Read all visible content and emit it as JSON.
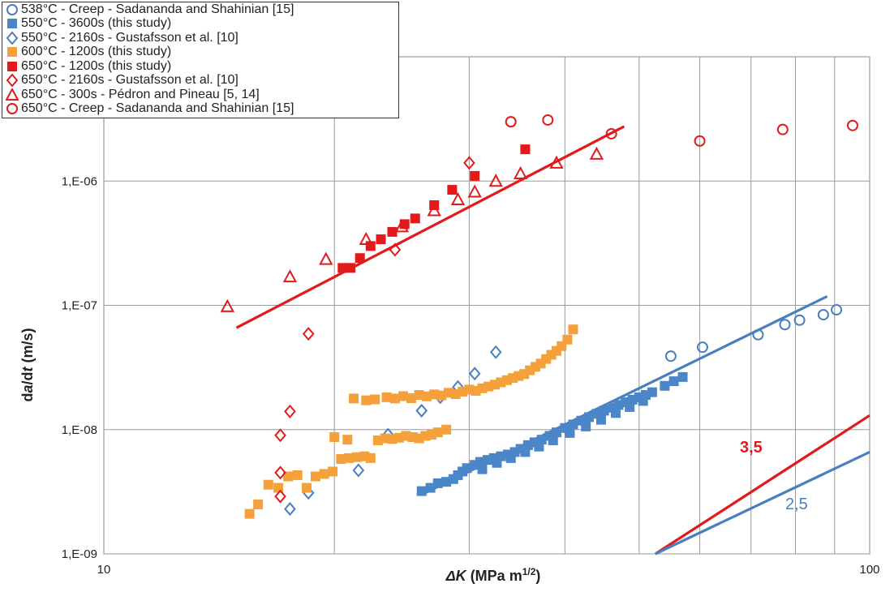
{
  "chart_data": {
    "type": "scatter",
    "xlabel_prefix": "ΔK",
    "xlabel_suffix": " (MPa m",
    "xlabel_sup": "1/2",
    "xlabel_close": ")",
    "ylabel_parts": [
      "d",
      "a",
      "/d",
      "t",
      " (m/s)"
    ],
    "x_scale": "log",
    "y_scale": "log",
    "xlim": [
      10,
      100
    ],
    "ylim": [
      1e-09,
      1e-05
    ],
    "x_ticks": [
      {
        "value": 10,
        "label": "10"
      },
      {
        "value": 100,
        "label": "100"
      }
    ],
    "y_ticks": [
      {
        "value": 1e-09,
        "label": "1,E-09"
      },
      {
        "value": 1e-08,
        "label": "1,E-08"
      },
      {
        "value": 1e-07,
        "label": "1,E-07"
      },
      {
        "value": 1e-06,
        "label": "1,E-06"
      }
    ],
    "grid": true,
    "legend_position": "top-left",
    "series": [
      {
        "name": "538°C - Creep - Sadananda and Shahinian [15]",
        "marker": "circle-open",
        "color": "#4a7fbf",
        "points": [
          [
            55.0,
            3.9e-08
          ],
          [
            60.5,
            4.6e-08
          ],
          [
            71.5,
            5.8e-08
          ],
          [
            77.5,
            7e-08
          ],
          [
            81.0,
            7.6e-08
          ],
          [
            87.0,
            8.4e-08
          ],
          [
            90.5,
            9.2e-08
          ]
        ]
      },
      {
        "name": "550°C - 3600s (this study)",
        "marker": "square-filled",
        "color": "#4a86c8",
        "points": [
          [
            26.0,
            3.2e-09
          ],
          [
            26.7,
            3.4e-09
          ],
          [
            27.3,
            3.7e-09
          ],
          [
            28.0,
            3.8e-09
          ],
          [
            28.6,
            4e-09
          ],
          [
            29.0,
            4.3e-09
          ],
          [
            29.4,
            4.6e-09
          ],
          [
            29.8,
            4.9e-09
          ],
          [
            30.5,
            5.2e-09
          ],
          [
            31.0,
            5.5e-09
          ],
          [
            31.7,
            5.7e-09
          ],
          [
            32.3,
            5.9e-09
          ],
          [
            33.0,
            6.1e-09
          ],
          [
            33.7,
            6.3e-09
          ],
          [
            34.4,
            6.6e-09
          ],
          [
            35.0,
            7e-09
          ],
          [
            35.8,
            7.5e-09
          ],
          [
            36.5,
            7.9e-09
          ],
          [
            37.3,
            8.3e-09
          ],
          [
            38.2,
            8.9e-09
          ],
          [
            39.0,
            9.5e-09
          ],
          [
            40.0,
            1.03e-08
          ],
          [
            41.0,
            1.1e-08
          ],
          [
            42.0,
            1.18e-08
          ],
          [
            43.0,
            1.26e-08
          ],
          [
            44.0,
            1.34e-08
          ],
          [
            45.0,
            1.42e-08
          ],
          [
            46.0,
            1.5e-08
          ],
          [
            47.0,
            1.58e-08
          ],
          [
            48.0,
            1.66e-08
          ],
          [
            49.0,
            1.74e-08
          ],
          [
            50.0,
            1.82e-08
          ],
          [
            51.0,
            1.9e-08
          ],
          [
            52.0,
            2e-08
          ],
          [
            54.0,
            2.25e-08
          ],
          [
            55.5,
            2.45e-08
          ],
          [
            57.0,
            2.65e-08
          ],
          [
            31.2,
            4.8e-09
          ],
          [
            32.6,
            5.4e-09
          ],
          [
            34.0,
            5.9e-09
          ],
          [
            35.5,
            6.6e-09
          ],
          [
            37.0,
            7.3e-09
          ],
          [
            38.6,
            8.2e-09
          ],
          [
            40.6,
            9.4e-09
          ],
          [
            42.6,
            1.06e-08
          ],
          [
            44.6,
            1.2e-08
          ],
          [
            46.6,
            1.36e-08
          ],
          [
            48.6,
            1.52e-08
          ],
          [
            50.6,
            1.7e-08
          ]
        ]
      },
      {
        "name": "550°C - 2160s - Gustafsson et al. [10]",
        "marker": "diamond-open",
        "color": "#4a7fbf",
        "points": [
          [
            17.5,
            2.3e-09
          ],
          [
            18.5,
            3.1e-09
          ],
          [
            21.5,
            4.7e-09
          ],
          [
            23.5,
            9.1e-09
          ],
          [
            26.0,
            1.42e-08
          ],
          [
            27.5,
            1.82e-08
          ],
          [
            29.0,
            2.2e-08
          ],
          [
            30.5,
            2.82e-08
          ],
          [
            32.5,
            4.2e-08
          ]
        ]
      },
      {
        "name": "600°C - 1200s (this study)",
        "marker": "square-filled",
        "color": "#f5a13b",
        "points": [
          [
            15.5,
            2.1e-09
          ],
          [
            15.9,
            2.5e-09
          ],
          [
            16.4,
            3.6e-09
          ],
          [
            16.9,
            3.4e-09
          ],
          [
            17.4,
            4.2e-09
          ],
          [
            17.9,
            4.3e-09
          ],
          [
            18.4,
            3.4e-09
          ],
          [
            18.9,
            4.2e-09
          ],
          [
            19.4,
            4.4e-09
          ],
          [
            19.9,
            4.6e-09
          ],
          [
            20.4,
            5.8e-09
          ],
          [
            20.9,
            5.9e-09
          ],
          [
            21.4,
            6e-09
          ],
          [
            21.9,
            6.1e-09
          ],
          [
            22.3,
            5.9e-09
          ],
          [
            22.8,
            8.2e-09
          ],
          [
            23.3,
            8.5e-09
          ],
          [
            23.8,
            8.4e-09
          ],
          [
            24.3,
            8.6e-09
          ],
          [
            24.8,
            8.9e-09
          ],
          [
            25.3,
            8.7e-09
          ],
          [
            25.8,
            8.5e-09
          ],
          [
            26.3,
            8.9e-09
          ],
          [
            26.8,
            9.1e-09
          ],
          [
            27.3,
            9.5e-09
          ],
          [
            28.0,
            1e-08
          ],
          [
            20.0,
            8.7e-09
          ],
          [
            20.8,
            8.3e-09
          ],
          [
            21.2,
            1.78e-08
          ],
          [
            22.0,
            1.72e-08
          ],
          [
            22.6,
            1.75e-08
          ],
          [
            23.4,
            1.82e-08
          ],
          [
            24.0,
            1.78e-08
          ],
          [
            24.6,
            1.86e-08
          ],
          [
            25.2,
            1.79e-08
          ],
          [
            25.8,
            1.9e-08
          ],
          [
            26.4,
            1.85e-08
          ],
          [
            27.0,
            1.92e-08
          ],
          [
            27.6,
            1.88e-08
          ],
          [
            28.2,
            1.98e-08
          ],
          [
            28.8,
            1.93e-08
          ],
          [
            29.4,
            2.02e-08
          ],
          [
            30.0,
            2.1e-08
          ],
          [
            30.6,
            2.05e-08
          ],
          [
            31.2,
            2.15e-08
          ],
          [
            31.8,
            2.22e-08
          ],
          [
            32.4,
            2.3e-08
          ],
          [
            33.0,
            2.4e-08
          ],
          [
            33.6,
            2.5e-08
          ],
          [
            34.2,
            2.6e-08
          ],
          [
            34.8,
            2.7e-08
          ],
          [
            35.4,
            2.8e-08
          ],
          [
            36.0,
            3e-08
          ],
          [
            36.6,
            3.2e-08
          ],
          [
            37.2,
            3.4e-08
          ],
          [
            37.8,
            3.7e-08
          ],
          [
            38.4,
            4e-08
          ],
          [
            39.0,
            4.3e-08
          ],
          [
            39.6,
            4.7e-08
          ],
          [
            40.3,
            5.3e-08
          ],
          [
            41.0,
            6.4e-08
          ]
        ]
      },
      {
        "name": "650°C - 1200s (this study)",
        "marker": "square-filled",
        "color": "#e21a1a",
        "points": [
          [
            20.5,
            2e-07
          ],
          [
            21.0,
            2e-07
          ],
          [
            21.6,
            2.4e-07
          ],
          [
            22.3,
            3e-07
          ],
          [
            23.0,
            3.4e-07
          ],
          [
            23.8,
            3.9e-07
          ],
          [
            24.7,
            4.5e-07
          ],
          [
            25.5,
            5e-07
          ],
          [
            27.0,
            6.4e-07
          ],
          [
            28.5,
            8.5e-07
          ],
          [
            30.5,
            1.1e-06
          ],
          [
            35.5,
            1.8e-06
          ]
        ]
      },
      {
        "name": "650°C - 2160s - Gustafsson et al. [10]",
        "marker": "diamond-open",
        "color": "#e21a1a",
        "points": [
          [
            17.0,
            2.9e-09
          ],
          [
            17.0,
            4.5e-09
          ],
          [
            17.0,
            9e-09
          ],
          [
            17.5,
            1.4e-08
          ],
          [
            18.5,
            5.9e-08
          ],
          [
            24.0,
            2.8e-07
          ],
          [
            30.0,
            1.4e-06
          ]
        ]
      },
      {
        "name": "650°C - 300s - Pédron and Pineau [5, 14]",
        "marker": "triangle-open",
        "color": "#e21a1a",
        "points": [
          [
            14.5,
            9.8e-08
          ],
          [
            17.5,
            1.7e-07
          ],
          [
            19.5,
            2.35e-07
          ],
          [
            22.0,
            3.4e-07
          ],
          [
            24.5,
            4.3e-07
          ],
          [
            27.0,
            5.8e-07
          ],
          [
            29.0,
            7.1e-07
          ],
          [
            30.5,
            8.2e-07
          ],
          [
            32.5,
            1e-06
          ],
          [
            35.0,
            1.15e-06
          ],
          [
            39.0,
            1.4e-06
          ],
          [
            44.0,
            1.65e-06
          ]
        ]
      },
      {
        "name": "650°C - Creep - Sadananda and Shahinian [15]",
        "marker": "circle-open",
        "color": "#e21a1a",
        "points": [
          [
            34.0,
            3e-06
          ],
          [
            38.0,
            3.1e-06
          ],
          [
            46.0,
            2.4e-06
          ],
          [
            60.0,
            2.1e-06
          ],
          [
            77.0,
            2.6e-06
          ],
          [
            95.0,
            2.8e-06
          ]
        ]
      }
    ],
    "fit_lines": [
      {
        "color": "#e21a1a",
        "x": [
          14.9,
          47.8
        ],
        "y": [
          6.6e-08,
          2.75e-06
        ]
      },
      {
        "color": "#4a7fbf",
        "x": [
          26.0,
          88.0
        ],
        "y": [
          3e-09,
          1.18e-07
        ]
      }
    ],
    "slope_lines": [
      {
        "label": "3,5",
        "color": "#e21a1a",
        "x": [
          52.5,
          100.0
        ],
        "y": [
          1e-09,
          1.3e-08
        ]
      },
      {
        "label": "2,5",
        "color": "#4a7fbf",
        "x": [
          52.5,
          100.0
        ],
        "y": [
          1e-09,
          6.6e-09
        ]
      }
    ]
  }
}
